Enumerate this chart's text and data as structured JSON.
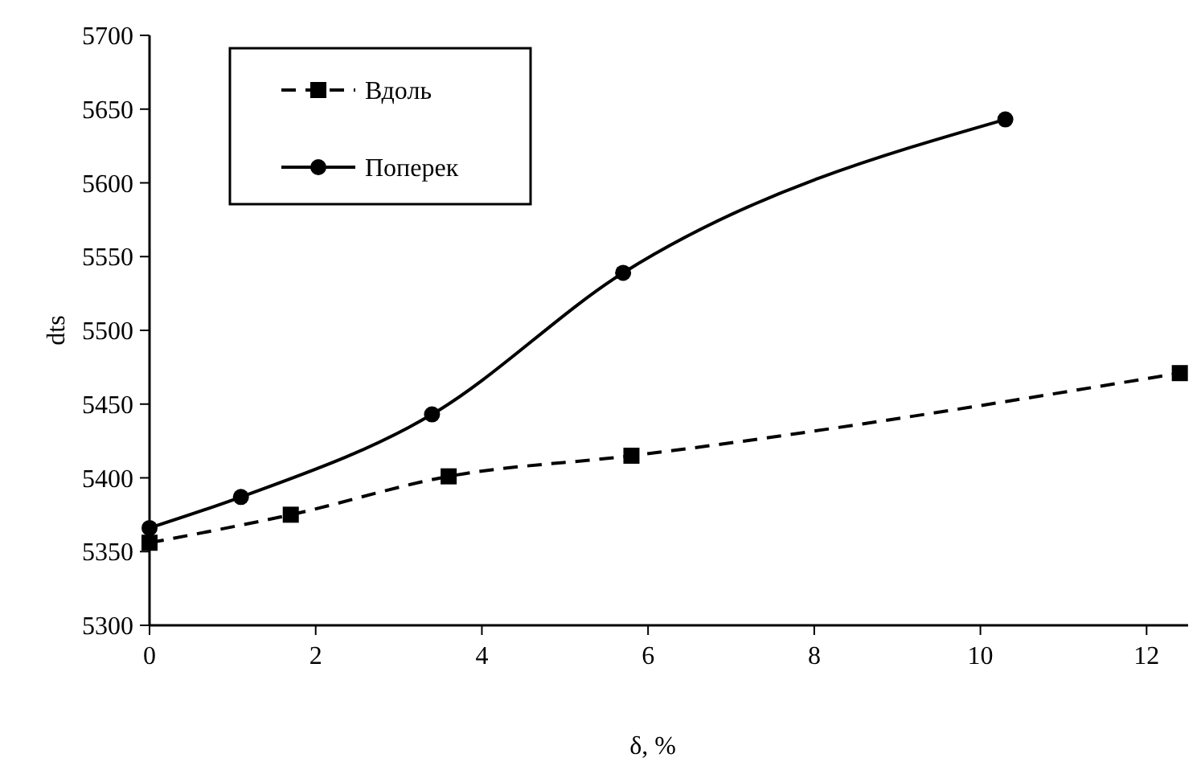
{
  "chart_data": {
    "type": "line",
    "xlabel": "δ, %",
    "ylabel": "dts",
    "xlim": [
      0,
      12.5
    ],
    "xticks": [
      0,
      2,
      4,
      6,
      8,
      10,
      12
    ],
    "ylim": [
      5300,
      5700
    ],
    "yticks": [
      5300,
      5350,
      5400,
      5450,
      5500,
      5550,
      5600,
      5650,
      5700
    ],
    "grid": false,
    "legend": "top left",
    "series": [
      {
        "name": "Вдоль",
        "color": "#000000",
        "marker": "square",
        "line_style": "dashed",
        "x": [
          0,
          1.7,
          3.6,
          5.8,
          12.4
        ],
        "values": [
          5356,
          5375,
          5401,
          5415,
          5471
        ]
      },
      {
        "name": "Поперек",
        "color": "#000000",
        "marker": "circle",
        "line_style": "solid",
        "x": [
          0,
          1.1,
          3.4,
          5.7,
          10.3
        ],
        "values": [
          5366,
          5387,
          5443,
          5539,
          5643
        ]
      }
    ]
  }
}
